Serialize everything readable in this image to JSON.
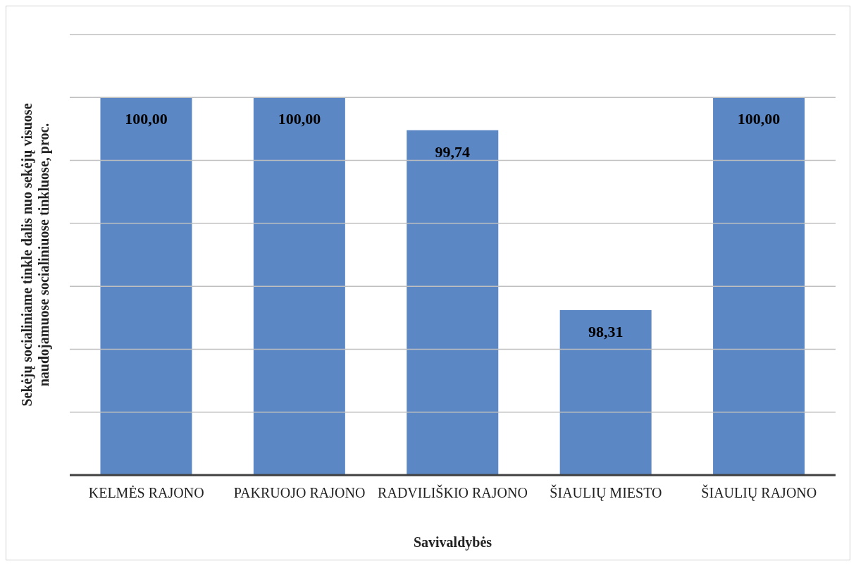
{
  "chart_data": {
    "type": "bar",
    "xlabel": "Savivaldybės",
    "ylabel": "Sekėjų socialiniame tinkle dalis nuo sekėjų visuose naudojamuose socialiniuose tinkluose, proc.",
    "categories": [
      "KELMĖS RAJONO",
      "PAKRUOJO RAJONO",
      "RADVILIŠKIO RAJONO",
      "ŠIAULIŲ MIESTO",
      "ŠIAULIŲ RAJONO"
    ],
    "values": [
      100,
      100,
      99.74,
      98.31,
      100
    ],
    "value_labels": [
      "100,00",
      "100,00",
      "99,74",
      "98,31",
      "100,00"
    ],
    "color": "#5b87c5",
    "ylim": [
      97,
      100.5
    ],
    "yticks": [
      {
        "value": 97,
        "label": null
      },
      {
        "value": 97.5,
        "label": null
      },
      {
        "value": 98,
        "label": null
      },
      {
        "value": 98.5,
        "label": null
      },
      {
        "value": 99,
        "label": null
      },
      {
        "value": 99.5,
        "label": null
      },
      {
        "value": 100,
        "label": null
      },
      {
        "value": 100.5,
        "label": null
      }
    ],
    "grid": "y",
    "tick_labels": "x"
  }
}
